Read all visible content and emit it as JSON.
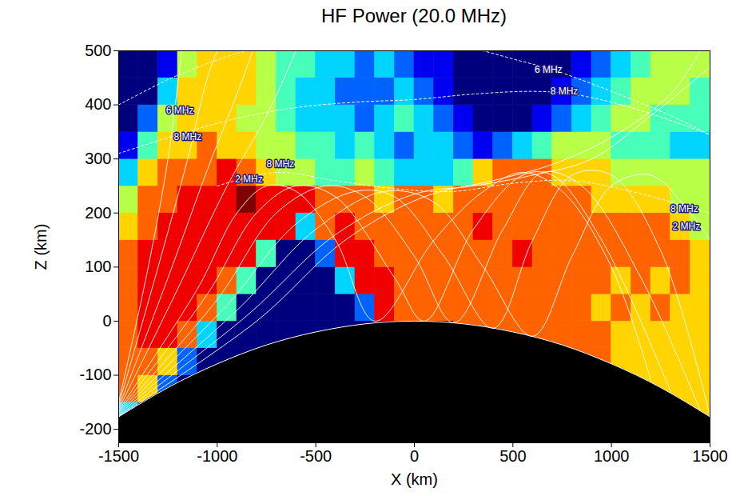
{
  "chart_data": {
    "type": "heatmap",
    "title": "HF Power (20.0 MHz)",
    "x_label": "X (km)",
    "y_label": "Z (km)",
    "xlim": [
      -1500,
      1500
    ],
    "ylim": [
      -225,
      500
    ],
    "xticks": [
      -1500,
      -1000,
      -500,
      0,
      500,
      1000,
      1500
    ],
    "yticks": [
      -200,
      -100,
      0,
      100,
      200,
      300,
      400,
      500
    ],
    "grid": false,
    "color_range": [
      0,
      9
    ],
    "x_bins": [
      -1500,
      -1400,
      -1300,
      -1200,
      -1100,
      -1000,
      -900,
      -800,
      -700,
      -600,
      -500,
      -400,
      -300,
      -200,
      -100,
      0,
      100,
      200,
      300,
      400,
      500,
      600,
      700,
      800,
      900,
      1000,
      1100,
      1200,
      1300,
      1400,
      1500
    ],
    "z_bins": [
      -200,
      -150,
      -100,
      -50,
      0,
      50,
      100,
      150,
      200,
      250,
      300,
      350,
      400,
      450,
      500
    ],
    "cells": [
      [
        3,
        0,
        0,
        0,
        0,
        0,
        0,
        0,
        0,
        0,
        0,
        0,
        0,
        0,
        0,
        0,
        0,
        0,
        0,
        0,
        0,
        0,
        0,
        0,
        0,
        0,
        0,
        0,
        6,
        6
      ],
      [
        7,
        6,
        2,
        0,
        0,
        0,
        0,
        0,
        0,
        0,
        0,
        0,
        0,
        0,
        0,
        0,
        0,
        0,
        0,
        0,
        0,
        0,
        0,
        0,
        0,
        0,
        6,
        6,
        6,
        6
      ],
      [
        7,
        7,
        6,
        2,
        0,
        0,
        0,
        0,
        0,
        0,
        0,
        0,
        0,
        0,
        0,
        0,
        0,
        0,
        0,
        0,
        0,
        0,
        7,
        7,
        7,
        6,
        6,
        6,
        6,
        6
      ],
      [
        7,
        8,
        8,
        7,
        3,
        0,
        0,
        0,
        0,
        0,
        0,
        0,
        0,
        0,
        0,
        0,
        0,
        7,
        7,
        7,
        7,
        7,
        7,
        7,
        7,
        6,
        6,
        6,
        6,
        6
      ],
      [
        7,
        8,
        8,
        8,
        7,
        4,
        0,
        0,
        0,
        0,
        0,
        0,
        2,
        8,
        7,
        7,
        7,
        7,
        7,
        7,
        7,
        7,
        7,
        7,
        6,
        7,
        6,
        7,
        6,
        6
      ],
      [
        7,
        8,
        8,
        8,
        8,
        7,
        4,
        0,
        0,
        0,
        0,
        3,
        8,
        8,
        7,
        7,
        7,
        7,
        7,
        7,
        7,
        7,
        7,
        7,
        7,
        6,
        7,
        6,
        7,
        6
      ],
      [
        7,
        8,
        8,
        8,
        8,
        8,
        8,
        4,
        0,
        0,
        2,
        8,
        8,
        7,
        7,
        7,
        7,
        7,
        7,
        7,
        8,
        7,
        7,
        7,
        7,
        7,
        7,
        7,
        7,
        6
      ],
      [
        6,
        7,
        8,
        8,
        8,
        8,
        8,
        8,
        8,
        3,
        7,
        8,
        7,
        7,
        7,
        7,
        7,
        7,
        8,
        7,
        7,
        7,
        7,
        7,
        7,
        7,
        7,
        7,
        6,
        5
      ],
      [
        5,
        7,
        7,
        8,
        8,
        8,
        9,
        8,
        8,
        8,
        7,
        7,
        7,
        6,
        7,
        7,
        6,
        7,
        7,
        7,
        7,
        7,
        7,
        7,
        6,
        6,
        6,
        6,
        5,
        5
      ],
      [
        3,
        6,
        7,
        7,
        7,
        8,
        7,
        6,
        5,
        5,
        4,
        4,
        5,
        4,
        3,
        3,
        3,
        4,
        6,
        7,
        7,
        7,
        6,
        6,
        6,
        5,
        5,
        5,
        5,
        5
      ],
      [
        1,
        4,
        6,
        6,
        7,
        6,
        6,
        5,
        5,
        4,
        4,
        3,
        4,
        3,
        2,
        3,
        3,
        2,
        1,
        2,
        3,
        4,
        5,
        5,
        5,
        4,
        4,
        4,
        3,
        3
      ],
      [
        0,
        2,
        5,
        6,
        6,
        6,
        5,
        5,
        4,
        3,
        3,
        3,
        2,
        3,
        4,
        3,
        2,
        1,
        0,
        0,
        0,
        1,
        2,
        3,
        4,
        5,
        5,
        4,
        4,
        4
      ],
      [
        0,
        0,
        3,
        6,
        6,
        6,
        6,
        5,
        4,
        3,
        3,
        2,
        2,
        2,
        3,
        2,
        1,
        0,
        0,
        0,
        0,
        0,
        1,
        2,
        3,
        4,
        5,
        5,
        5,
        4
      ],
      [
        0,
        0,
        1,
        5,
        6,
        6,
        6,
        5,
        4,
        4,
        3,
        3,
        2,
        3,
        2,
        1,
        1,
        0,
        0,
        0,
        0,
        0,
        0,
        1,
        2,
        3,
        4,
        5,
        5,
        5
      ]
    ],
    "ground": {
      "x": [
        -1500,
        -1250,
        -1000,
        -750,
        -500,
        -250,
        0,
        250,
        500,
        750,
        1000,
        1250,
        1500
      ],
      "z": [
        -177,
        -123,
        -79,
        -44,
        -20,
        -5,
        0,
        -5,
        -20,
        -44,
        -79,
        -123,
        -177
      ]
    },
    "rays": [
      [
        [
          -1500,
          -150
        ],
        [
          -1350,
          100
        ],
        [
          -1250,
          300
        ],
        [
          -1180,
          500
        ]
      ],
      [
        [
          -1500,
          -155
        ],
        [
          -1300,
          100
        ],
        [
          -1150,
          300
        ],
        [
          -1050,
          450
        ],
        [
          -1000,
          500
        ]
      ],
      [
        [
          -1500,
          -160
        ],
        [
          -1250,
          80
        ],
        [
          -1050,
          280
        ],
        [
          -900,
          420
        ],
        [
          -820,
          500
        ]
      ],
      [
        [
          -1500,
          -163
        ],
        [
          -1200,
          60
        ],
        [
          -950,
          250
        ],
        [
          -750,
          380
        ],
        [
          -600,
          500
        ]
      ],
      [
        [
          -1500,
          -165
        ],
        [
          -1100,
          60
        ],
        [
          -900,
          200
        ],
        [
          -750,
          250
        ],
        [
          -600,
          240
        ],
        [
          -400,
          150
        ],
        [
          -200,
          0
        ],
        [
          100,
          150
        ],
        [
          350,
          240
        ],
        [
          550,
          275
        ],
        [
          750,
          240
        ],
        [
          1000,
          100
        ],
        [
          1200,
          -110
        ]
      ],
      [
        [
          -1500,
          -167
        ],
        [
          -1050,
          50
        ],
        [
          -800,
          200
        ],
        [
          -600,
          250
        ],
        [
          -400,
          230
        ],
        [
          -100,
          80
        ],
        [
          50,
          0
        ],
        [
          300,
          170
        ],
        [
          550,
          270
        ],
        [
          700,
          270
        ],
        [
          950,
          150
        ],
        [
          1300,
          -130
        ]
      ],
      [
        [
          -1500,
          -169
        ],
        [
          -1000,
          40
        ],
        [
          -700,
          200
        ],
        [
          -450,
          250
        ],
        [
          -250,
          230
        ],
        [
          0,
          120
        ],
        [
          200,
          -3
        ],
        [
          450,
          170
        ],
        [
          650,
          275
        ],
        [
          850,
          250
        ],
        [
          1150,
          80
        ],
        [
          1450,
          -165
        ]
      ],
      [
        [
          -1500,
          -171
        ],
        [
          -950,
          30
        ],
        [
          -600,
          180
        ],
        [
          -300,
          240
        ],
        [
          -100,
          230
        ],
        [
          150,
          120
        ],
        [
          400,
          -13
        ],
        [
          600,
          150
        ],
        [
          800,
          270
        ],
        [
          1000,
          270
        ],
        [
          1250,
          130
        ],
        [
          1500,
          -177
        ]
      ],
      [
        [
          -1500,
          -173
        ],
        [
          -900,
          20
        ],
        [
          -500,
          170
        ],
        [
          -150,
          240
        ],
        [
          100,
          220
        ],
        [
          350,
          100
        ],
        [
          600,
          -28
        ],
        [
          800,
          120
        ],
        [
          1000,
          250
        ],
        [
          1200,
          270
        ],
        [
          1400,
          200
        ],
        [
          1500,
          150
        ]
      ],
      [
        [
          -1500,
          -175
        ],
        [
          -850,
          10
        ],
        [
          -400,
          160
        ],
        [
          0,
          235
        ],
        [
          300,
          250
        ],
        [
          600,
          270
        ],
        [
          900,
          300
        ],
        [
          1200,
          380
        ],
        [
          1500,
          470
        ]
      ],
      [
        [
          -1500,
          -176
        ],
        [
          -800,
          0
        ],
        [
          -350,
          150
        ],
        [
          50,
          230
        ],
        [
          400,
          260
        ],
        [
          700,
          290
        ],
        [
          1000,
          340
        ],
        [
          1300,
          420
        ],
        [
          1450,
          500
        ]
      ]
    ],
    "contours": [
      [
        [
          -1500,
          400
        ],
        [
          -1200,
          455
        ],
        [
          -900,
          495
        ],
        [
          -750,
          510
        ]
      ],
      [
        [
          250,
          510
        ],
        [
          500,
          485
        ],
        [
          700,
          465
        ],
        [
          1000,
          425
        ],
        [
          1300,
          380
        ],
        [
          1500,
          345
        ]
      ],
      [
        [
          -1500,
          310
        ],
        [
          -1200,
          345
        ],
        [
          -900,
          375
        ],
        [
          -600,
          395
        ],
        [
          -300,
          405
        ],
        [
          0,
          410
        ],
        [
          300,
          420
        ],
        [
          600,
          425
        ],
        [
          800,
          420
        ],
        [
          1100,
          395
        ],
        [
          1500,
          345
        ]
      ],
      [
        [
          -1000,
          250
        ],
        [
          -700,
          275
        ],
        [
          -400,
          260
        ],
        [
          -100,
          245
        ],
        [
          200,
          240
        ],
        [
          500,
          255
        ],
        [
          800,
          260
        ],
        [
          1100,
          240
        ],
        [
          1500,
          200
        ]
      ]
    ],
    "annotations": [
      {
        "text": "6 MHz",
        "x": -1190,
        "z": 390
      },
      {
        "text": "8 MHz",
        "x": -1150,
        "z": 340
      },
      {
        "text": "6 MHz",
        "x": 680,
        "z": 465
      },
      {
        "text": "8 MHz",
        "x": 760,
        "z": 425
      },
      {
        "text": "8 MHz",
        "x": -680,
        "z": 290
      },
      {
        "text": "2 MHz",
        "x": -840,
        "z": 262
      },
      {
        "text": "8 MHz",
        "x": 1370,
        "z": 208
      },
      {
        "text": "2 MHz",
        "x": 1380,
        "z": 175
      }
    ]
  }
}
